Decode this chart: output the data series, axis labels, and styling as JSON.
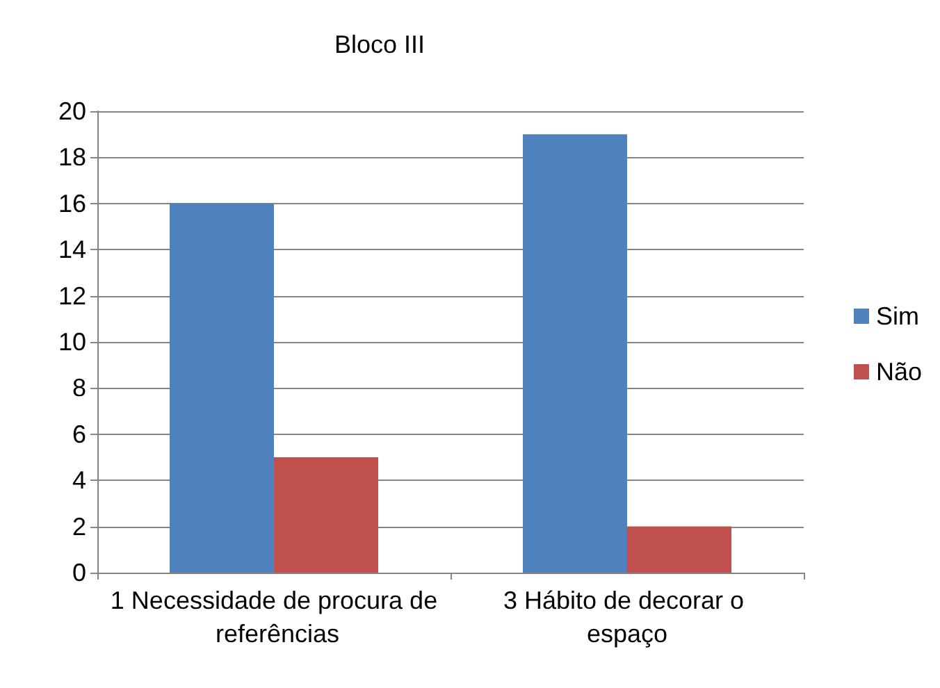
{
  "chart_data": {
    "type": "bar",
    "title": "Bloco III",
    "categories": [
      "1 Necessidade de procura de referências",
      "3 Hábito de decorar o espaço"
    ],
    "series": [
      {
        "name": "Sim",
        "color": "#4f81bd",
        "values": [
          16,
          19
        ]
      },
      {
        "name": "Não",
        "color": "#c0504d",
        "values": [
          5,
          2
        ]
      }
    ],
    "ylim": [
      0,
      20
    ],
    "yticks": [
      0,
      2,
      4,
      6,
      8,
      10,
      12,
      14,
      16,
      18,
      20
    ],
    "grid": "y",
    "legend": "right"
  }
}
